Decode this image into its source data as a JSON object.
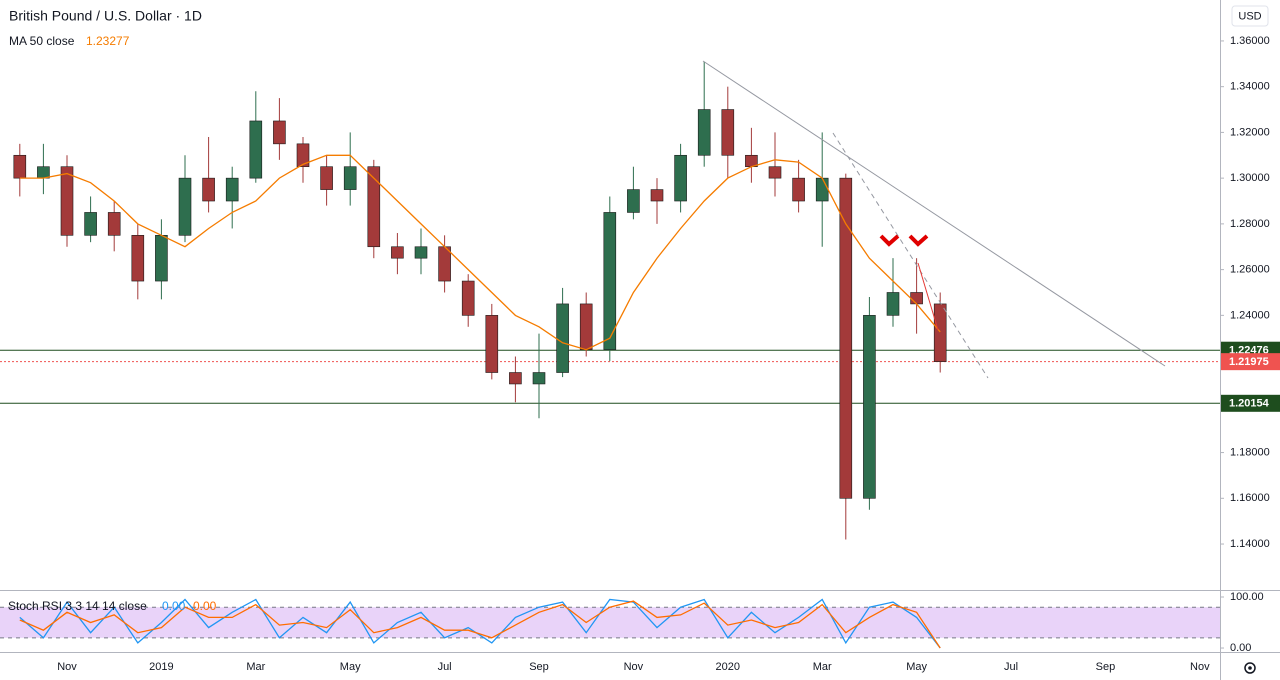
{
  "chart_data": {
    "type": "candlestick",
    "title": "British Pound / U.S. Dollar · 1D",
    "currency": "USD",
    "categories": [
      null,
      null,
      "Nov",
      null,
      null,
      null,
      "2019",
      null,
      null,
      null,
      "Mar",
      null,
      null,
      null,
      "May",
      null,
      null,
      null,
      "Jul",
      null,
      null,
      null,
      "Sep",
      null,
      null,
      null,
      "Nov",
      null,
      null,
      null,
      "2020",
      null,
      null,
      null,
      "Mar",
      null,
      null,
      null,
      "May",
      null,
      null,
      null,
      "Jul",
      null,
      null,
      null,
      "Sep",
      null,
      null,
      null,
      "Nov"
    ],
    "open": [
      1.31,
      1.3,
      1.305,
      1.275,
      1.285,
      1.275,
      1.255,
      1.275,
      1.3,
      1.29,
      1.3,
      1.325,
      1.315,
      1.305,
      1.295,
      1.305,
      1.27,
      1.265,
      1.27,
      1.255,
      1.24,
      1.215,
      1.21,
      1.215,
      1.245,
      1.225,
      1.285,
      1.295,
      1.29,
      1.31,
      1.33,
      1.31,
      1.305,
      1.3,
      1.29,
      1.3,
      1.16,
      1.24,
      1.25,
      1.245,
      null,
      null,
      null,
      null,
      null,
      null,
      null,
      null,
      null,
      null,
      null
    ],
    "high": [
      1.315,
      1.315,
      1.31,
      1.292,
      1.29,
      1.28,
      1.282,
      1.31,
      1.318,
      1.305,
      1.338,
      1.335,
      1.318,
      1.31,
      1.32,
      1.308,
      1.276,
      1.278,
      1.275,
      1.258,
      1.245,
      1.222,
      1.232,
      1.252,
      1.25,
      1.292,
      1.305,
      1.3,
      1.315,
      1.351,
      1.34,
      1.322,
      1.32,
      1.308,
      1.32,
      1.302,
      1.248,
      1.265,
      1.265,
      1.25,
      null,
      null,
      null,
      null,
      null,
      null,
      null,
      null,
      null,
      null,
      null
    ],
    "low": [
      1.292,
      1.293,
      1.27,
      1.272,
      1.268,
      1.247,
      1.247,
      1.272,
      1.285,
      1.278,
      1.298,
      1.308,
      1.298,
      1.288,
      1.288,
      1.265,
      1.258,
      1.258,
      1.25,
      1.235,
      1.212,
      1.202,
      1.195,
      1.213,
      1.222,
      1.22,
      1.282,
      1.28,
      1.285,
      1.305,
      1.3,
      1.298,
      1.292,
      1.285,
      1.27,
      1.142,
      1.155,
      1.235,
      1.232,
      1.215,
      null,
      null,
      null,
      null,
      null,
      null,
      null,
      null,
      null,
      null,
      null
    ],
    "close": [
      1.3,
      1.305,
      1.275,
      1.285,
      1.275,
      1.255,
      1.275,
      1.3,
      1.29,
      1.3,
      1.325,
      1.315,
      1.305,
      1.295,
      1.305,
      1.27,
      1.265,
      1.27,
      1.255,
      1.24,
      1.215,
      1.21,
      1.215,
      1.245,
      1.225,
      1.285,
      1.295,
      1.29,
      1.31,
      1.33,
      1.31,
      1.305,
      1.3,
      1.29,
      1.3,
      1.16,
      1.24,
      1.25,
      1.245,
      1.21975,
      null,
      null,
      null,
      null,
      null,
      null,
      null,
      null,
      null,
      null,
      null
    ],
    "up_color": "#2e6e4e",
    "down_color": "#a33a3a",
    "moving_average": {
      "name": "MA 50 close",
      "last": 1.23277,
      "color": "#f57c00",
      "values": [
        1.3,
        1.3,
        1.302,
        1.298,
        1.29,
        1.28,
        1.275,
        1.27,
        1.278,
        1.285,
        1.29,
        1.3,
        1.306,
        1.31,
        1.31,
        1.3,
        1.29,
        1.28,
        1.27,
        1.26,
        1.25,
        1.24,
        1.235,
        1.228,
        1.225,
        1.23,
        1.25,
        1.265,
        1.278,
        1.29,
        1.3,
        1.305,
        1.308,
        1.307,
        1.3,
        1.28,
        1.265,
        1.255,
        1.245,
        1.23277,
        null,
        null,
        null,
        null,
        null,
        null,
        null,
        null,
        null,
        null,
        null
      ]
    },
    "levels": [
      {
        "value": 1.22476,
        "color": "#1e4d1e"
      },
      {
        "value": 1.21975,
        "color": "#ef5350"
      },
      {
        "value": 1.20154,
        "color": "#1e4d1e"
      }
    ],
    "ylim": [
      1.1199,
      1.3779
    ],
    "yticks": [
      {
        "value": 1.14,
        "label": "1.14000"
      },
      {
        "value": 1.16,
        "label": "1.16000"
      },
      {
        "value": 1.18,
        "label": "1.18000"
      },
      {
        "value": 1.2,
        "label": "1.20000"
      },
      {
        "value": 1.22,
        "label": "1.22000"
      },
      {
        "value": 1.24,
        "label": "1.24000"
      },
      {
        "value": 1.26,
        "label": "1.26000"
      },
      {
        "value": 1.28,
        "label": "1.28000"
      },
      {
        "value": 1.3,
        "label": "1.30000"
      },
      {
        "value": 1.32,
        "label": "1.32000"
      },
      {
        "value": 1.34,
        "label": "1.34000"
      },
      {
        "value": 1.36,
        "label": "1.36000"
      }
    ],
    "indicator": {
      "name": "Stoch RSI 3 3 14 14 close",
      "ylim": [
        -7.8,
        113.7
      ],
      "yticks": [
        {
          "value": 0,
          "label": "0.00"
        },
        {
          "value": 100,
          "label": "100.00"
        }
      ],
      "bands": [
        20,
        80
      ],
      "series": [
        {
          "name": "K",
          "color": "#2196f3",
          "last": {
            "value": 0,
            "label": "0.00"
          },
          "values": [
            60,
            20,
            90,
            30,
            80,
            10,
            50,
            95,
            40,
            70,
            95,
            20,
            60,
            30,
            90,
            10,
            50,
            70,
            20,
            40,
            10,
            60,
            80,
            90,
            30,
            95,
            90,
            40,
            80,
            95,
            20,
            70,
            30,
            60,
            95,
            10,
            80,
            90,
            60,
            0,
            null,
            null,
            null,
            null,
            null,
            null,
            null,
            null,
            null,
            null,
            null
          ]
        },
        {
          "name": "D",
          "color": "#ff6d00",
          "last": {
            "value": 0,
            "label": "0.00"
          },
          "values": [
            55,
            35,
            70,
            50,
            65,
            30,
            40,
            80,
            60,
            60,
            85,
            45,
            50,
            40,
            75,
            30,
            40,
            60,
            35,
            35,
            20,
            45,
            70,
            85,
            50,
            80,
            92,
            60,
            65,
            88,
            45,
            55,
            40,
            50,
            85,
            30,
            60,
            85,
            70,
            0,
            null,
            null,
            null,
            null,
            null,
            null,
            null,
            null,
            null,
            null,
            null
          ]
        }
      ]
    }
  }
}
